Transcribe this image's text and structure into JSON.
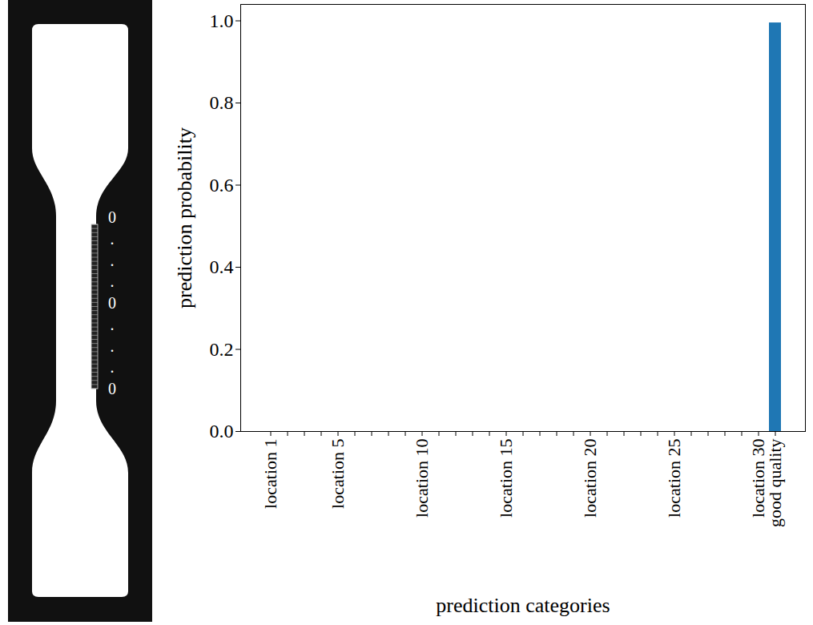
{
  "chart_data": {
    "type": "bar",
    "x_label": "prediction categories",
    "y_label": "prediction probability",
    "categories": [
      "location 1",
      null,
      null,
      null,
      "location 5",
      null,
      null,
      null,
      null,
      "location 10",
      null,
      null,
      null,
      null,
      "location 15",
      null,
      null,
      null,
      null,
      "location 20",
      null,
      null,
      null,
      null,
      "location 25",
      null,
      null,
      null,
      null,
      "location 30",
      "good quality"
    ],
    "values": [
      0,
      0,
      0,
      0,
      0,
      0,
      0,
      0,
      0,
      0,
      0,
      0,
      0,
      0,
      0,
      0,
      0,
      0,
      0,
      0,
      0,
      0,
      0,
      0,
      0,
      0,
      0,
      0,
      0,
      0,
      0.995
    ],
    "color": "#1f77b4",
    "ylim": [
      0,
      1.04
    ],
    "yticks": [
      {
        "value": 0,
        "label": "0.0"
      },
      {
        "value": 0.2,
        "label": "0.2"
      },
      {
        "value": 0.4,
        "label": "0.4"
      },
      {
        "value": 0.6,
        "label": "0.6"
      },
      {
        "value": 0.8,
        "label": "0.8"
      },
      {
        "value": 1,
        "label": "1.0"
      }
    ],
    "grid": false
  },
  "specimen": {
    "labels": [
      "0",
      ".",
      ".",
      ".",
      "0",
      ".",
      ".",
      ".",
      "0"
    ]
  }
}
